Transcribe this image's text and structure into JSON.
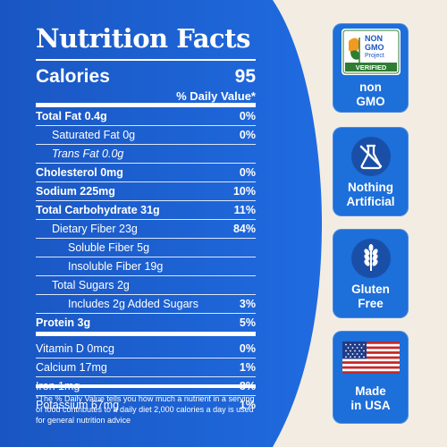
{
  "title": "Nutrition Facts",
  "calories": {
    "label": "Calories",
    "value": "95"
  },
  "daily_value_header": "% Daily Value*",
  "nutrients": [
    {
      "label": "Total Fat 0.4g",
      "pct": "0%"
    },
    {
      "label": "Saturated Fat 0g",
      "pct": "0%"
    },
    {
      "label": "Trans Fat 0.0g",
      "pct": ""
    },
    {
      "label": "Cholesterol 0mg",
      "pct": "0%"
    },
    {
      "label": "Sodium 225mg",
      "pct": "10%"
    },
    {
      "label": "Total Carbohydrate 31g",
      "pct": "11%"
    },
    {
      "label": "Dietary Fiber 23g",
      "pct": "84%"
    },
    {
      "label": "Soluble Fiber 5g",
      "pct": ""
    },
    {
      "label": "Insoluble Fiber 19g",
      "pct": ""
    },
    {
      "label": "Total Sugars 2g",
      "pct": ""
    },
    {
      "label": "Includes 2g Added Sugars",
      "pct": "3%"
    },
    {
      "label": "Protein 3g",
      "pct": "5%"
    },
    {
      "label": "Vitamin D 0mcg",
      "pct": "0%"
    },
    {
      "label": "Calcium 17mg",
      "pct": "1%"
    },
    {
      "label": "Iron 1mg",
      "pct": "8%"
    },
    {
      "label": "Potassium 67mg",
      "pct": "1%"
    }
  ],
  "footnote": "*The % Daily Value tells you how much a nutrient in a serving of food contributes to a daily diet 2,000 calories a day is used for general nutrition advice",
  "badges": {
    "non_gmo": {
      "logo_line1": "NON",
      "logo_line2": "GMO",
      "logo_line3": "Project",
      "logo_line4": "VERIFIED",
      "line1": "non",
      "line2": "GMO"
    },
    "nothing_artificial": {
      "line1": "Nothing",
      "line2": "Artificial",
      "icon": "flask-crossed-icon"
    },
    "gluten_free": {
      "line1": "Gluten",
      "line2": "Free",
      "icon": "wheat-icon"
    },
    "made_in_usa": {
      "line1": "Made",
      "line2": "in USA",
      "icon": "us-flag-icon"
    }
  },
  "colors": {
    "panel_blue": "#1a5cc8",
    "badge_blue": "#1d6fd9",
    "background": "#f3ece2",
    "text": "#ffffff"
  }
}
